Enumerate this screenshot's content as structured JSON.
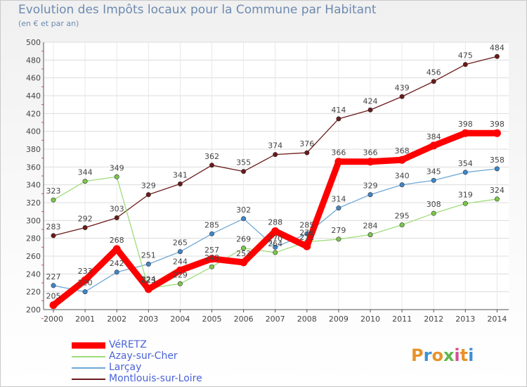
{
  "header": {
    "title": "Evolution des Impôts locaux pour la Commune par Habitant",
    "subtitle": "(en € et par an)"
  },
  "logo": {
    "text": "Proxiti",
    "colors": [
      "#e7932b",
      "#3f8fd6",
      "#e7932b",
      "#5fb84a",
      "#d64f95",
      "#e7932b",
      "#3f8fd6"
    ]
  },
  "chart_data": {
    "type": "line",
    "title": "Evolution des Impôts locaux pour la Commune par Habitant",
    "subtitle": "(en € et par an)",
    "x": [
      "2000",
      "2001",
      "2002",
      "2003",
      "2004",
      "2005",
      "2006",
      "2007",
      "2008",
      "2009",
      "2010",
      "2011",
      "2012",
      "2013",
      "2014"
    ],
    "ylim": [
      200,
      500
    ],
    "yticks": [
      200,
      220,
      240,
      260,
      280,
      300,
      320,
      340,
      360,
      380,
      400,
      420,
      440,
      460,
      480,
      500
    ],
    "grid": true,
    "legend_position": "bottom-left",
    "series": [
      {
        "name": "Montlouis-sur-Loire",
        "color": "#6b1a1a",
        "marker": "#6b1a1a",
        "values": [
          283,
          292,
          303,
          329,
          341,
          362,
          355,
          374,
          376,
          414,
          424,
          439,
          456,
          475,
          484
        ]
      },
      {
        "name": "Larçay",
        "color": "#6fa8d6",
        "marker": "#3f86c8",
        "values": [
          227,
          220,
          242,
          251,
          265,
          285,
          302,
          270,
          285,
          314,
          329,
          340,
          345,
          354,
          358
        ]
      },
      {
        "name": "Azay-sur-Cher",
        "color": "#9fdc7a",
        "marker": "#7cc74a",
        "values": [
          323,
          344,
          349,
          224,
          229,
          248,
          269,
          264,
          276,
          279,
          284,
          295,
          308,
          319,
          324
        ]
      },
      {
        "name": "VéRETZ",
        "color": "#ff0000",
        "marker": "#ff0000",
        "values": [
          205,
          233,
          268,
          223,
          244,
          257,
          253,
          288,
          271,
          366,
          366,
          368,
          384,
          398,
          398
        ]
      }
    ]
  }
}
